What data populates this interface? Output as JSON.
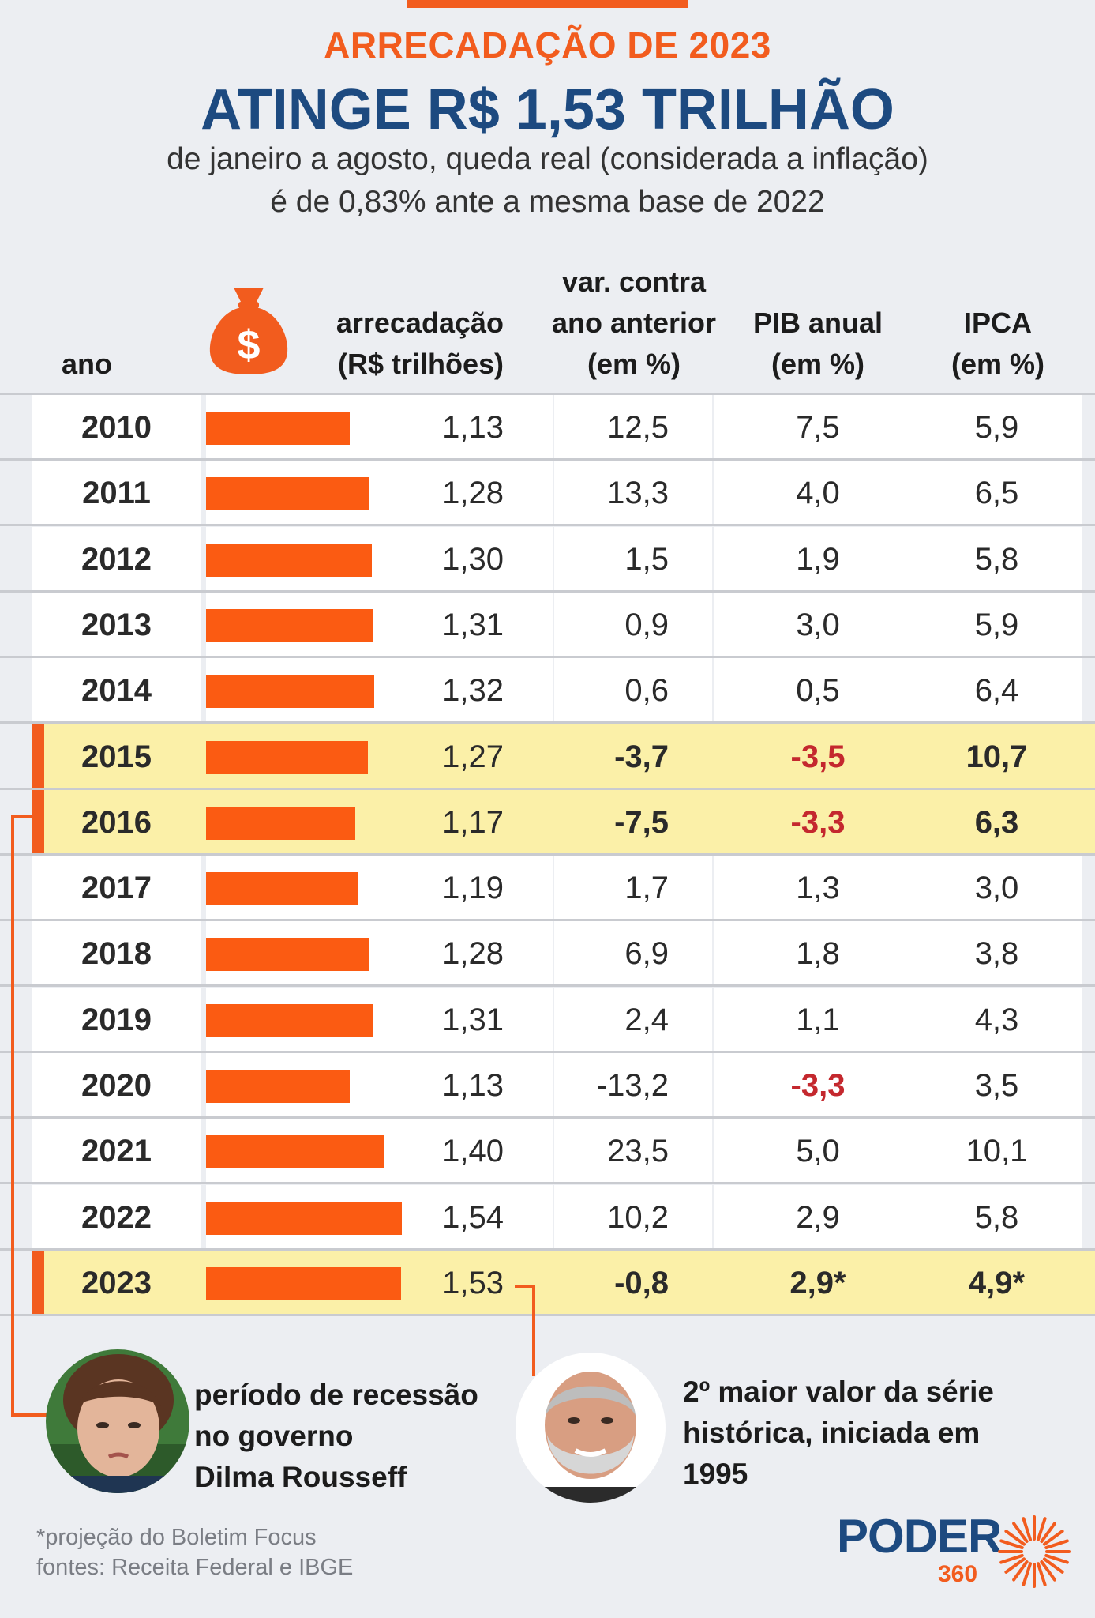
{
  "header": {
    "kicker": "ARRECADAÇÃO DE 2023",
    "title": "ATINGE R$ 1,53 TRILHÃO",
    "subtitle_line1": "de janeiro a agosto, queda real (considerada a inflação)",
    "subtitle_line2": "é de 0,83% ante a mesma base de 2022"
  },
  "columns": {
    "ano": "ano",
    "arrecadacao": [
      "arrecadação",
      "(R$ trilhões)"
    ],
    "var": [
      "var. contra",
      "ano anterior",
      "(em %)"
    ],
    "pib": [
      "PIB anual",
      "(em %)"
    ],
    "ipca": [
      "IPCA",
      "(em %)"
    ]
  },
  "icons": {
    "moneybag": "money-bag-icon",
    "logo_sun": "sunburst-icon"
  },
  "colors": {
    "accent": "#f25c1e",
    "bar": "#fb5b12",
    "navy": "#1d4a80",
    "highlight": "#fbf0a8",
    "negative": "#c4282e"
  },
  "chart_data": {
    "type": "table",
    "categories": [
      "2010",
      "2011",
      "2012",
      "2013",
      "2014",
      "2015",
      "2016",
      "2017",
      "2018",
      "2019",
      "2020",
      "2021",
      "2022",
      "2023"
    ],
    "series": [
      {
        "name": "arrecadação (R$ trilhões)",
        "values": [
          1.13,
          1.28,
          1.3,
          1.31,
          1.32,
          1.27,
          1.17,
          1.19,
          1.28,
          1.31,
          1.13,
          1.4,
          1.54,
          1.53
        ]
      },
      {
        "name": "var. contra ano anterior (em %)",
        "values": [
          12.5,
          13.3,
          1.5,
          0.9,
          0.6,
          -3.7,
          -7.5,
          1.7,
          6.9,
          2.4,
          -13.2,
          23.5,
          10.2,
          -0.8
        ]
      },
      {
        "name": "PIB anual (em %)",
        "values": [
          7.5,
          4.0,
          1.9,
          3.0,
          0.5,
          -3.5,
          -3.3,
          1.3,
          1.8,
          1.1,
          -3.3,
          5.0,
          2.9,
          2.9
        ]
      },
      {
        "name": "IPCA (em %)",
        "values": [
          5.9,
          6.5,
          5.8,
          5.9,
          6.4,
          10.7,
          6.3,
          3.0,
          3.8,
          4.3,
          3.5,
          10.1,
          5.8,
          4.9
        ]
      }
    ],
    "rows": [
      {
        "year": "2010",
        "arr": "1,13",
        "var": "12,5",
        "pib": "7,5",
        "ipca": "5,9"
      },
      {
        "year": "2011",
        "arr": "1,28",
        "var": "13,3",
        "pib": "4,0",
        "ipca": "6,5"
      },
      {
        "year": "2012",
        "arr": "1,30",
        "var": "1,5",
        "pib": "1,9",
        "ipca": "5,8"
      },
      {
        "year": "2013",
        "arr": "1,31",
        "var": "0,9",
        "pib": "3,0",
        "ipca": "5,9"
      },
      {
        "year": "2014",
        "arr": "1,32",
        "var": "0,6",
        "pib": "0,5",
        "ipca": "6,4"
      },
      {
        "year": "2015",
        "arr": "1,27",
        "var": "-3,7",
        "pib": "-3,5",
        "ipca": "10,7"
      },
      {
        "year": "2016",
        "arr": "1,17",
        "var": "-7,5",
        "pib": "-3,3",
        "ipca": "6,3"
      },
      {
        "year": "2017",
        "arr": "1,19",
        "var": "1,7",
        "pib": "1,3",
        "ipca": "3,0"
      },
      {
        "year": "2018",
        "arr": "1,28",
        "var": "6,9",
        "pib": "1,8",
        "ipca": "3,8"
      },
      {
        "year": "2019",
        "arr": "1,31",
        "var": "2,4",
        "pib": "1,1",
        "ipca": "4,3"
      },
      {
        "year": "2020",
        "arr": "1,13",
        "var": "-13,2",
        "pib": "-3,3",
        "ipca": "3,5"
      },
      {
        "year": "2021",
        "arr": "1,40",
        "var": "23,5",
        "pib": "5,0",
        "ipca": "10,1"
      },
      {
        "year": "2022",
        "arr": "1,54",
        "var": "10,2",
        "pib": "2,9",
        "ipca": "5,8"
      },
      {
        "year": "2023",
        "arr": "1,53",
        "var": "-0,8",
        "pib": "2,9*",
        "ipca": "4,9*"
      }
    ],
    "highlighted_years": [
      "2015",
      "2016",
      "2023"
    ],
    "red_pib_years": [
      "2015",
      "2016",
      "2020"
    ]
  },
  "annotations": {
    "dilma": [
      "período de recessão",
      "no governo",
      "Dilma Rousseff"
    ],
    "lula": [
      "2º maior valor da série",
      "histórica, iniciada em",
      "1995"
    ]
  },
  "footer": {
    "note": "*projeção do Boletim Focus",
    "sources": "fontes: Receita Federal e IBGE"
  },
  "logo": {
    "word": "PODER",
    "number": "360"
  }
}
